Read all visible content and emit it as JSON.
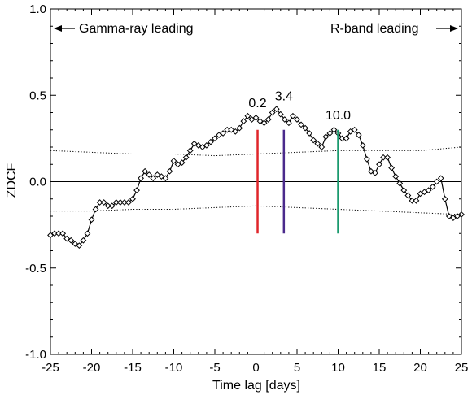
{
  "chart_data": {
    "type": "line",
    "xlabel": "Time lag [days]",
    "ylabel": "ZDCF",
    "xlim": [
      -25,
      25
    ],
    "ylim": [
      -1.0,
      1.0
    ],
    "x_ticks": [
      -25,
      -20,
      -15,
      -10,
      -5,
      0,
      5,
      10,
      15,
      20,
      25
    ],
    "y_ticks": [
      -1.0,
      -0.5,
      0.0,
      0.5,
      1.0
    ],
    "y_tick_labels": [
      "-1.0",
      "-0.5",
      "0.0",
      "0.5",
      "1.0"
    ],
    "annotations": {
      "left": "Gamma-ray  leading",
      "right": "R-band leading"
    },
    "series": [
      {
        "style": "line-with-diamond-markers",
        "color": "#000000",
        "x": [
          -25.0,
          -24.5,
          -24.0,
          -23.5,
          -23.0,
          -22.5,
          -22.0,
          -21.5,
          -21.0,
          -20.5,
          -20.0,
          -19.5,
          -19.0,
          -18.5,
          -18.0,
          -17.5,
          -17.0,
          -16.5,
          -16.0,
          -15.5,
          -15.0,
          -14.5,
          -14.0,
          -13.5,
          -13.0,
          -12.5,
          -12.0,
          -11.5,
          -11.0,
          -10.5,
          -10.0,
          -9.5,
          -9.0,
          -8.5,
          -8.0,
          -7.5,
          -7.0,
          -6.5,
          -6.0,
          -5.5,
          -5.0,
          -4.5,
          -4.0,
          -3.5,
          -3.0,
          -2.5,
          -2.0,
          -1.5,
          -1.0,
          -0.5,
          0.0,
          0.5,
          1.0,
          1.5,
          2.0,
          2.5,
          3.0,
          3.5,
          4.0,
          4.5,
          5.0,
          5.5,
          6.0,
          6.5,
          7.0,
          7.5,
          8.0,
          8.5,
          9.0,
          9.5,
          10.0,
          10.5,
          11.0,
          11.5,
          12.0,
          12.5,
          13.0,
          13.5,
          14.0,
          14.5,
          15.0,
          15.5,
          16.0,
          16.5,
          17.0,
          17.5,
          18.0,
          18.5,
          19.0,
          19.5,
          20.0,
          20.5,
          21.0,
          21.5,
          22.0,
          22.5,
          23.0,
          23.5,
          24.0,
          24.5,
          25.0
        ],
        "values": [
          -0.31,
          -0.3,
          -0.3,
          -0.3,
          -0.33,
          -0.34,
          -0.36,
          -0.37,
          -0.34,
          -0.3,
          -0.22,
          -0.16,
          -0.12,
          -0.12,
          -0.14,
          -0.14,
          -0.12,
          -0.12,
          -0.12,
          -0.12,
          -0.1,
          -0.05,
          0.02,
          0.06,
          0.04,
          0.02,
          0.04,
          0.03,
          0.02,
          0.06,
          0.12,
          0.1,
          0.11,
          0.14,
          0.18,
          0.22,
          0.21,
          0.2,
          0.21,
          0.23,
          0.25,
          0.27,
          0.28,
          0.3,
          0.3,
          0.29,
          0.31,
          0.35,
          0.38,
          0.36,
          0.37,
          0.35,
          0.34,
          0.36,
          0.4,
          0.42,
          0.39,
          0.36,
          0.34,
          0.38,
          0.36,
          0.33,
          0.31,
          0.28,
          0.24,
          0.22,
          0.2,
          0.26,
          0.28,
          0.3,
          0.28,
          0.25,
          0.25,
          0.29,
          0.3,
          0.27,
          0.21,
          0.13,
          0.06,
          0.05,
          0.1,
          0.14,
          0.14,
          0.08,
          0.03,
          -0.01,
          -0.05,
          -0.08,
          -0.11,
          -0.11,
          -0.07,
          -0.06,
          -0.05,
          -0.03,
          0.0,
          0.02,
          -0.1,
          -0.2,
          -0.21,
          -0.2,
          -0.19
        ]
      },
      {
        "style": "dotted",
        "color": "#000000",
        "x": [
          -25,
          -20,
          -15,
          -10,
          -5,
          0,
          5,
          10,
          15,
          20,
          25
        ],
        "values": [
          0.18,
          0.17,
          0.16,
          0.16,
          0.15,
          0.16,
          0.17,
          0.18,
          0.18,
          0.18,
          0.2
        ]
      },
      {
        "style": "dotted",
        "color": "#000000",
        "x": [
          -25,
          -20,
          -15,
          -10,
          -5,
          0,
          5,
          10,
          15,
          20,
          25
        ],
        "values": [
          -0.17,
          -0.17,
          -0.16,
          -0.16,
          -0.15,
          -0.14,
          -0.15,
          -0.16,
          -0.17,
          -0.18,
          -0.19
        ]
      }
    ],
    "markers": [
      {
        "label": "0.2",
        "x": 0.2,
        "y_from": -0.3,
        "y_to": 0.3,
        "color": "#e0252a"
      },
      {
        "label": "3.4",
        "x": 3.4,
        "y_from": -0.3,
        "y_to": 0.3,
        "color": "#4b2a8c"
      },
      {
        "label": "10.0",
        "x": 10.0,
        "y_from": -0.3,
        "y_to": 0.3,
        "color": "#1a9a6e"
      }
    ]
  }
}
